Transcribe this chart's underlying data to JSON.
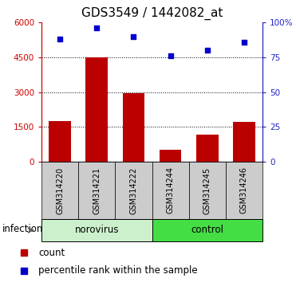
{
  "title": "GDS3549 / 1442082_at",
  "samples": [
    "GSM314220",
    "GSM314221",
    "GSM314222",
    "GSM314244",
    "GSM314245",
    "GSM314246"
  ],
  "counts": [
    1750,
    4500,
    2950,
    500,
    1150,
    1700
  ],
  "percentiles": [
    88,
    96,
    90,
    76,
    80,
    86
  ],
  "bar_color": "#bb0000",
  "dot_color": "#0000cc",
  "ylim_left": [
    0,
    6000
  ],
  "ylim_right": [
    0,
    100
  ],
  "yticks_left": [
    0,
    1500,
    3000,
    4500,
    6000
  ],
  "yticks_right": [
    0,
    25,
    50,
    75,
    100
  ],
  "yticklabels_left": [
    "0",
    "1500",
    "3000",
    "4500",
    "6000"
  ],
  "yticklabels_right": [
    "0",
    "25",
    "50",
    "75",
    "100%"
  ],
  "left_tick_color": "#cc0000",
  "right_tick_color": "#2222cc",
  "grid_yticks": [
    1500,
    3000,
    4500
  ],
  "norovirus_color": "#ccf0cc",
  "control_color": "#44dd44",
  "label_bg_color": "#cccccc",
  "infection_label": "infection",
  "legend_count_label": "count",
  "legend_pct_label": "percentile rank within the sample",
  "title_fontsize": 11,
  "tick_label_fontsize": 7.5,
  "bar_width": 0.6
}
